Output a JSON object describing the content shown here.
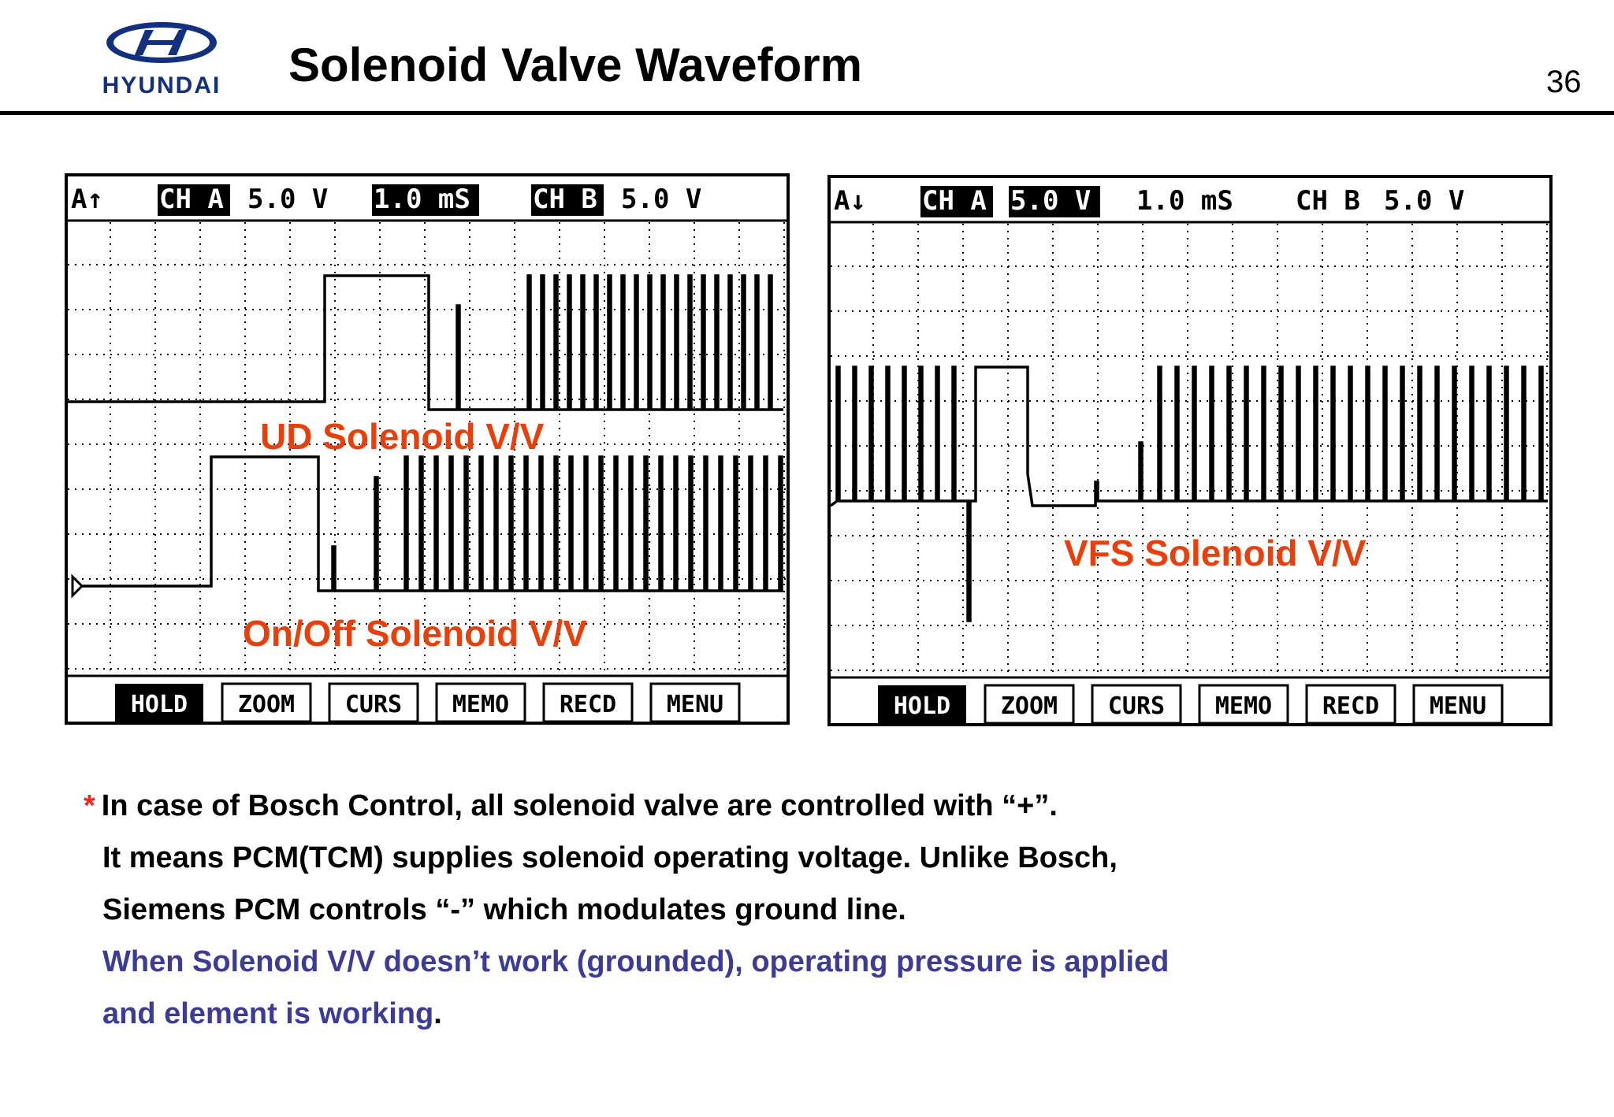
{
  "header": {
    "brand": "HYUNDAI",
    "title": "Solenoid Valve Waveform",
    "page_number": "36"
  },
  "scope_left": {
    "status": {
      "trigger": "A↑",
      "ch_a": "CH A",
      "volt_a": "5.0 V",
      "time": "1.0 mS",
      "ch_b": "CH B",
      "volt_b": "5.0 V"
    },
    "labels": {
      "upper": "UD Solenoid V/V",
      "lower": "On/Off Solenoid V/V"
    },
    "buttons": [
      "HOLD",
      "ZOOM",
      "CURS",
      "MEMO",
      "RECD",
      "MENU"
    ]
  },
  "scope_right": {
    "status": {
      "trigger": "A↓",
      "ch_a": "CH A",
      "volt_a": "5.0 V",
      "time": "1.0 mS",
      "ch_b": "CH B",
      "volt_b": "5.0 V"
    },
    "labels": {
      "main": "VFS Solenoid V/V"
    },
    "buttons": [
      "HOLD",
      "ZOOM",
      "CURS",
      "MEMO",
      "RECD",
      "MENU"
    ]
  },
  "notes": {
    "star": "*",
    "line1": "In case of Bosch Control, all solenoid valve are controlled with “+”.",
    "line2": "It means PCM(TCM) supplies solenoid operating voltage. Unlike Bosch,",
    "line3": "Siemens PCM controls “-” which modulates ground line.",
    "line4": "When Solenoid V/V doesn’t work (grounded), operating pressure is applied",
    "line5": "and element is working",
    "line5_end": "."
  },
  "colors": {
    "label_orange": "#e8400c",
    "star_red": "#e8281e",
    "note_blue": "#3c3c96"
  }
}
